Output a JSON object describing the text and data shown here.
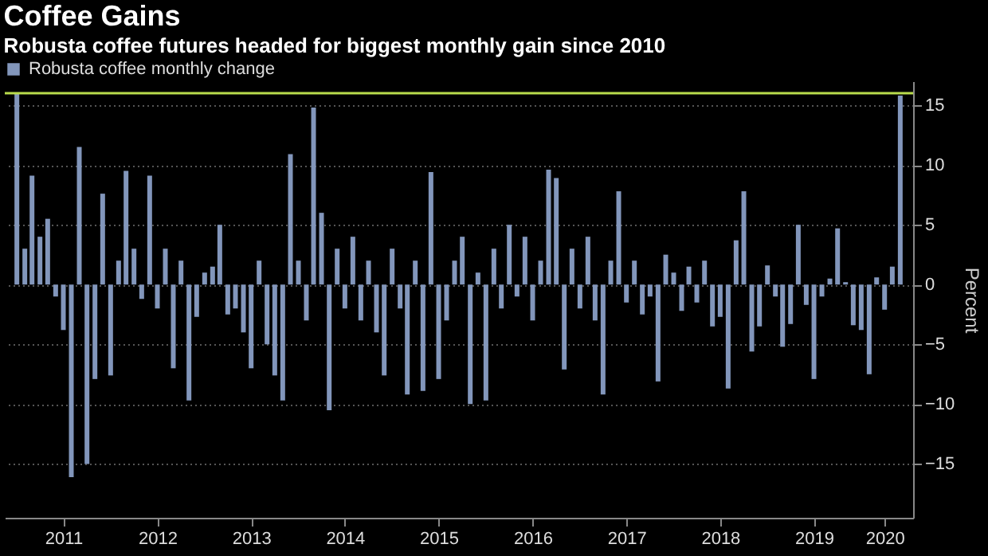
{
  "chart_data": {
    "type": "bar",
    "title": "Coffee Gains",
    "subtitle": "Robusta coffee futures headed for biggest monthly gain since 2010",
    "ylabel": "Percent",
    "x": [
      "2011-01",
      "2011-02",
      "2011-03",
      "2011-04",
      "2011-05",
      "2011-06",
      "2011-07",
      "2011-08",
      "2011-09",
      "2011-10",
      "2011-11",
      "2011-12",
      "2012-01",
      "2012-02",
      "2012-03",
      "2012-04",
      "2012-05",
      "2012-06",
      "2012-07",
      "2012-08",
      "2012-09",
      "2012-10",
      "2012-11",
      "2012-12",
      "2013-01",
      "2013-02",
      "2013-03",
      "2013-04",
      "2013-05",
      "2013-06",
      "2013-07",
      "2013-08",
      "2013-09",
      "2013-10",
      "2013-11",
      "2013-12",
      "2014-01",
      "2014-02",
      "2014-03",
      "2014-04",
      "2014-05",
      "2014-06",
      "2014-07",
      "2014-08",
      "2014-09",
      "2014-10",
      "2014-11",
      "2014-12",
      "2015-01",
      "2015-02",
      "2015-03",
      "2015-04",
      "2015-05",
      "2015-06",
      "2015-07",
      "2015-08",
      "2015-09",
      "2015-10",
      "2015-11",
      "2015-12",
      "2016-01",
      "2016-02",
      "2016-03",
      "2016-04",
      "2016-05",
      "2016-06",
      "2016-07",
      "2016-08",
      "2016-09",
      "2016-10",
      "2016-11",
      "2016-12",
      "2017-01",
      "2017-02",
      "2017-03",
      "2017-04",
      "2017-05",
      "2017-06",
      "2017-07",
      "2017-08",
      "2017-09",
      "2017-10",
      "2017-11",
      "2017-12",
      "2018-01",
      "2018-02",
      "2018-03",
      "2018-04",
      "2018-05",
      "2018-06",
      "2018-07",
      "2018-08",
      "2018-09",
      "2018-10",
      "2018-11",
      "2018-12",
      "2019-01",
      "2019-02",
      "2019-03",
      "2019-04",
      "2019-05",
      "2019-06",
      "2019-07",
      "2019-08",
      "2019-09",
      "2019-10",
      "2019-11",
      "2019-12",
      "2020-01",
      "2020-02",
      "2020-03",
      "2020-04",
      "2020-05",
      "2020-06"
    ],
    "series": [
      {
        "name": "Robusta coffee monthly change",
        "color": "#8296bb",
        "values": [
          16,
          3,
          9.1,
          4,
          5.5,
          -1,
          -3.8,
          -16.1,
          11.5,
          -15,
          -7.9,
          7.6,
          -7.6,
          2,
          9.5,
          3,
          -1.2,
          9.1,
          -2,
          3,
          -7,
          2,
          -9.7,
          -2.7,
          1,
          1.5,
          5,
          -2.5,
          -2,
          -4,
          -7,
          2,
          -5,
          -7.6,
          -9.7,
          10.9,
          2,
          -3,
          14.8,
          6,
          -10.5,
          3,
          -2,
          4,
          -3,
          2,
          -4,
          -7.6,
          3,
          -2,
          -9.2,
          2,
          -8.9,
          9.4,
          -7.9,
          -3,
          2,
          4,
          -10,
          1,
          -9.7,
          3,
          -2,
          5,
          -1,
          4,
          -3,
          2,
          9.6,
          8.9,
          -7.1,
          3,
          -2,
          4,
          -3,
          -9.2,
          2,
          7.8,
          -1.5,
          2,
          -2.5,
          -1,
          -8.1,
          2.5,
          1,
          -2.2,
          1.5,
          -1.5,
          2,
          -3.5,
          -2.7,
          -8.7,
          3.7,
          7.8,
          -5.6,
          -3.5,
          1.6,
          -1,
          -5.2,
          -3.3,
          5,
          -1.7,
          -7.9,
          -1,
          0.5,
          4.7,
          0.2,
          -3.4,
          -3.8,
          -7.5,
          0.6,
          -2.1,
          1.5,
          15.8
        ]
      }
    ],
    "xlim": [
      "2010-12-16",
      "2020-06-20"
    ],
    "xticks": [
      {
        "value": "2011-07-01",
        "label": "2011"
      },
      {
        "value": "2012-07-01",
        "label": "2012"
      },
      {
        "value": "2013-07-01",
        "label": "2013"
      },
      {
        "value": "2014-07-01",
        "label": "2014"
      },
      {
        "value": "2015-07-01",
        "label": "2015"
      },
      {
        "value": "2016-07-01",
        "label": "2016"
      },
      {
        "value": "2017-07-01",
        "label": "2017"
      },
      {
        "value": "2018-07-01",
        "label": "2018"
      },
      {
        "value": "2019-07-01",
        "label": "2019"
      },
      {
        "value": "2020-04-01",
        "label": "2020"
      }
    ],
    "ylim": [
      -19.5,
      17
    ],
    "yticks": [
      -15,
      -10,
      -5,
      0,
      5,
      10,
      15
    ],
    "ref_lines": [
      {
        "axis": "y",
        "value": 16,
        "color": "#b9dc4c"
      }
    ],
    "grid": "y",
    "legend": "top left"
  }
}
